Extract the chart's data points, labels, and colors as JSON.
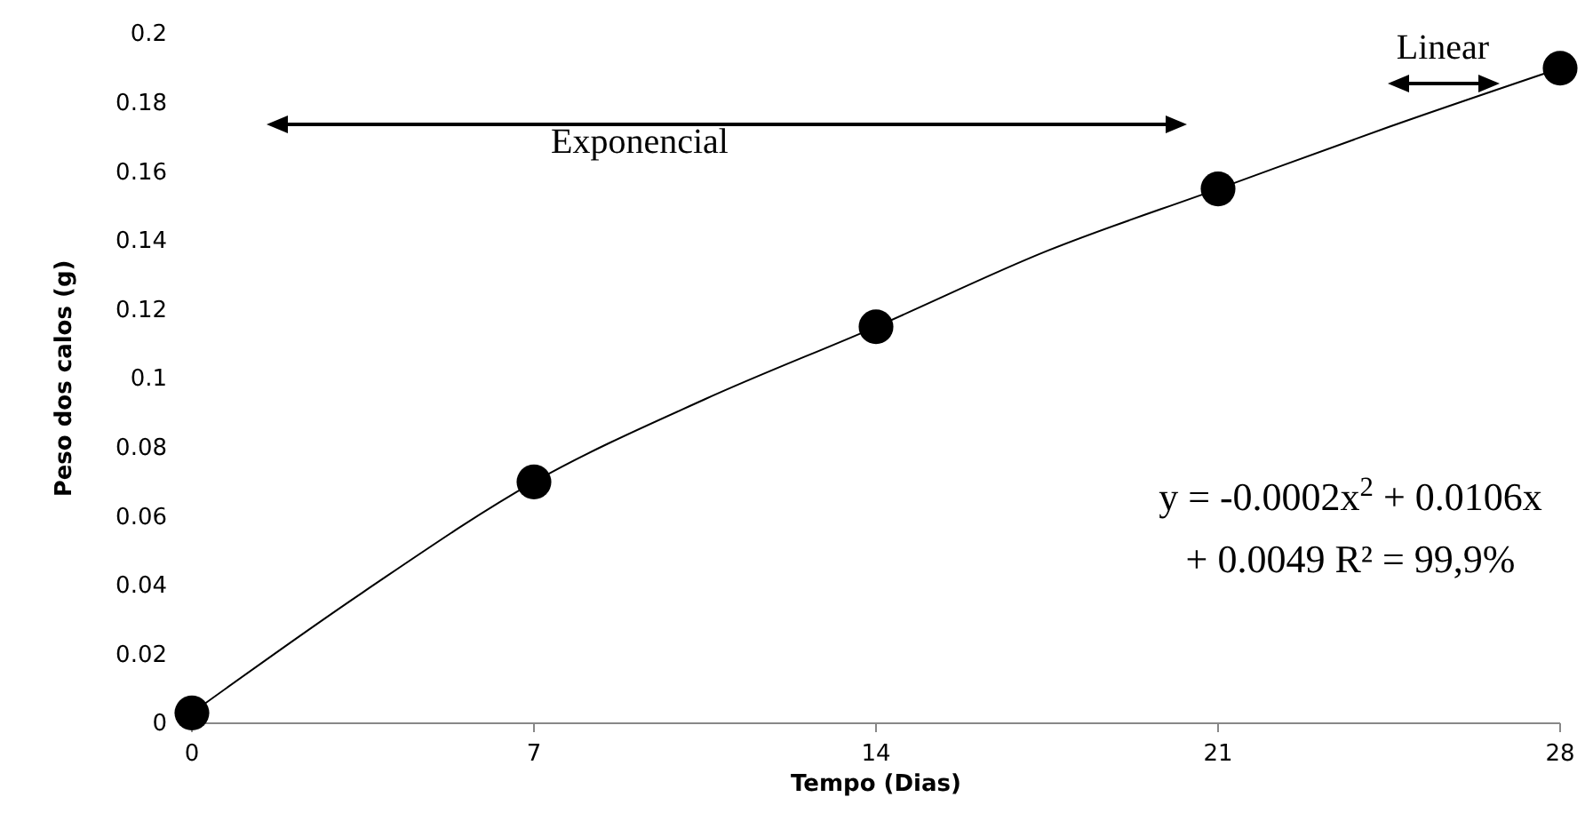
{
  "chart_data": {
    "type": "scatter",
    "xlabel": "Tempo (Dias)",
    "ylabel": "Peso dos calos (g)",
    "xlim": [
      0,
      28
    ],
    "xticks": [
      0,
      7,
      14,
      21,
      28
    ],
    "ylim": [
      0,
      0.2
    ],
    "yticks": [
      0,
      0.02,
      0.04,
      0.06,
      0.08,
      0.1,
      0.12,
      0.14,
      0.16,
      0.18,
      0.2
    ],
    "grid": false,
    "series": [
      {
        "marker": "circle",
        "color": "#000000",
        "x": [
          0,
          7,
          14,
          21,
          28
        ],
        "values": [
          0.003,
          0.07,
          0.115,
          0.155,
          0.19
        ]
      },
      {
        "type": "line",
        "marker": "none",
        "color": "#000000",
        "line_style": "solid",
        "x": [
          0,
          3.5,
          7,
          10.5,
          14,
          17.5,
          21,
          24.5,
          28
        ],
        "values": [
          0.003,
          0.038,
          0.07,
          0.094,
          0.115,
          0.137,
          0.155,
          0.173,
          0.19
        ]
      }
    ],
    "annotations": [
      "Exponencial",
      "Linear",
      "y = -0.0002x$^{2}$ + 0.0106x",
      "+ 0.0049 R² = 99,9%"
    ]
  }
}
